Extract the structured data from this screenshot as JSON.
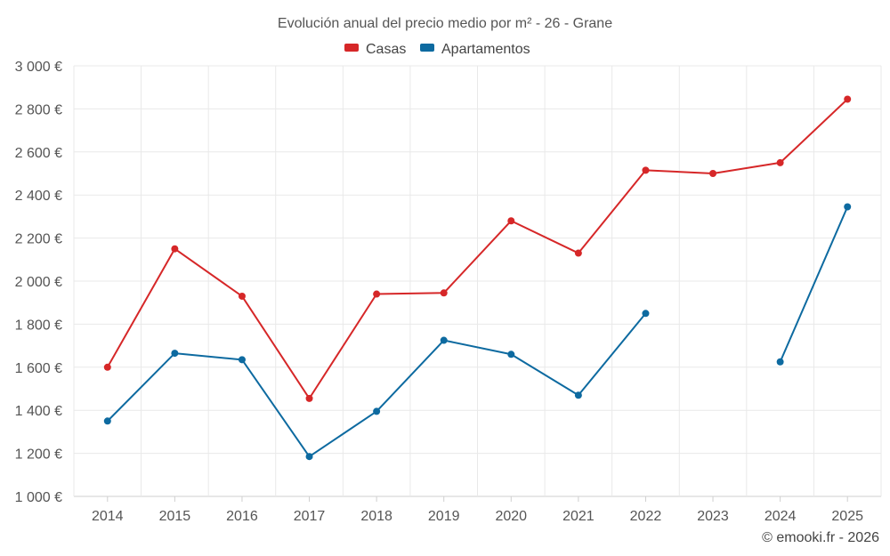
{
  "chart_data": {
    "type": "line",
    "title": "Evolución anual del precio medio por m² - 26 - Grane",
    "categories": [
      "2014",
      "2015",
      "2016",
      "2017",
      "2018",
      "2019",
      "2020",
      "2021",
      "2022",
      "2023",
      "2024",
      "2025"
    ],
    "series": [
      {
        "name": "Casas",
        "color": "#d62728",
        "values": [
          1600,
          2150,
          1930,
          1455,
          1940,
          1945,
          2280,
          2130,
          2515,
          2500,
          2550,
          2845
        ]
      },
      {
        "name": "Apartamentos",
        "color": "#0d6aa0",
        "values": [
          1350,
          1665,
          1635,
          1185,
          1395,
          1725,
          1660,
          1470,
          1850,
          null,
          1625,
          2345
        ]
      }
    ],
    "ylim": [
      1000,
      3000
    ],
    "yticks": [
      1000,
      1200,
      1400,
      1600,
      1800,
      2000,
      2200,
      2400,
      2600,
      2800,
      3000
    ],
    "ytick_labels": [
      "1 000 €",
      "1 200 €",
      "1 400 €",
      "1 600 €",
      "1 800 €",
      "2 000 €",
      "2 200 €",
      "2 400 €",
      "2 600 €",
      "2 800 €",
      "3 000 €"
    ],
    "xlabel": "",
    "ylabel": "",
    "legend_position": "top-center",
    "grid": true
  },
  "credit": "© emooki.fr - 2026"
}
